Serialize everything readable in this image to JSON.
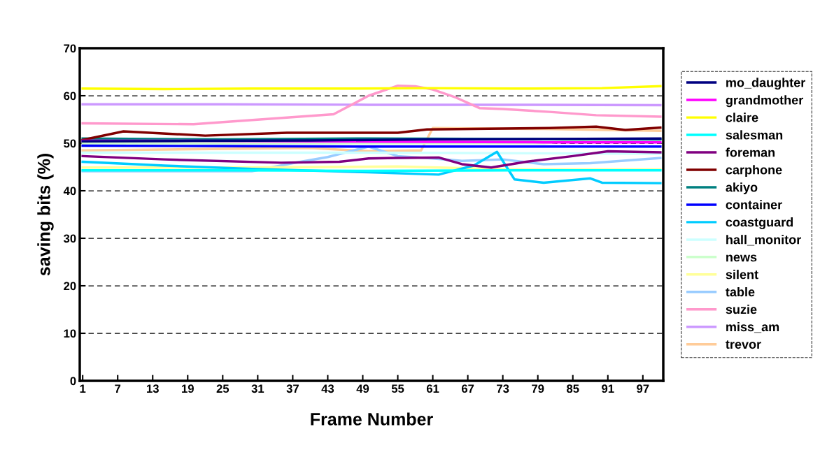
{
  "chart_data": {
    "type": "line",
    "xlabel": "Frame Number",
    "ylabel": "saving bits (%)",
    "xlim": [
      0.5,
      100.5
    ],
    "xticks": [
      1,
      7,
      13,
      19,
      25,
      31,
      37,
      43,
      49,
      55,
      61,
      67,
      73,
      79,
      85,
      91,
      97
    ],
    "ylim": [
      0,
      70
    ],
    "yticks": [
      0,
      10,
      20,
      30,
      40,
      50,
      60,
      70
    ],
    "grid": "y",
    "legend": "right",
    "marker": "none",
    "line_style": "solid",
    "series": [
      {
        "name": "mo_daughter",
        "color": "#000080",
        "x": [
          1,
          20,
          40,
          60,
          80,
          100
        ],
        "values": [
          50.4,
          50.5,
          50.6,
          50.8,
          50.9,
          51.0
        ]
      },
      {
        "name": "grandmother",
        "color": "#ff00ff",
        "x": [
          1,
          20,
          40,
          60,
          80,
          100
        ],
        "values": [
          50.5,
          50.5,
          50.4,
          50.3,
          50.2,
          50.2
        ]
      },
      {
        "name": "claire",
        "color": "#ffff00",
        "x": [
          1,
          15,
          30,
          45,
          60,
          75,
          90,
          100
        ],
        "values": [
          61.5,
          61.4,
          61.5,
          61.5,
          61.6,
          61.5,
          61.6,
          62.0
        ]
      },
      {
        "name": "salesman",
        "color": "#00ffff",
        "x": [
          1,
          25,
          50,
          75,
          100
        ],
        "values": [
          44.3,
          44.3,
          44.2,
          44.3,
          44.3
        ]
      },
      {
        "name": "foreman",
        "color": "#800080",
        "x": [
          1,
          15,
          35,
          45,
          50,
          55,
          62,
          66,
          71,
          77,
          85,
          91,
          100
        ],
        "values": [
          47.3,
          46.6,
          45.9,
          46.1,
          46.8,
          46.9,
          47.0,
          45.6,
          44.9,
          46.1,
          47.3,
          48.3,
          48.1
        ]
      },
      {
        "name": "carphone",
        "color": "#800000",
        "x": [
          1,
          8,
          22,
          36,
          50,
          55,
          60,
          81,
          89,
          94,
          100
        ],
        "values": [
          50.7,
          52.5,
          51.6,
          52.2,
          52.2,
          52.2,
          52.9,
          53.2,
          53.5,
          52.8,
          53.3
        ]
      },
      {
        "name": "akiyo",
        "color": "#008080",
        "x": [
          1,
          25,
          50,
          75,
          100
        ],
        "values": [
          51.0,
          50.8,
          51.0,
          50.9,
          50.8
        ]
      },
      {
        "name": "container",
        "color": "#0000ff",
        "x": [
          1,
          25,
          50,
          75,
          100
        ],
        "values": [
          49.5,
          49.4,
          49.3,
          49.3,
          49.3
        ]
      },
      {
        "name": "coastguard",
        "color": "#00ccff",
        "x": [
          1,
          10,
          15,
          30,
          50,
          62,
          68,
          72,
          75,
          80,
          88,
          90,
          100
        ],
        "values": [
          46.1,
          45.6,
          45.3,
          44.6,
          43.9,
          43.4,
          45.3,
          48.2,
          42.4,
          41.7,
          42.6,
          41.7,
          41.6
        ]
      },
      {
        "name": "hall_monitor",
        "color": "#ccffff",
        "x": [
          1,
          50,
          100
        ],
        "values": [
          48.0,
          48.0,
          47.8
        ]
      },
      {
        "name": "news",
        "color": "#ccffcc",
        "x": [
          1,
          40,
          80,
          88,
          100
        ],
        "values": [
          50.0,
          50.0,
          50.0,
          50.8,
          50.9
        ]
      },
      {
        "name": "silent",
        "color": "#ffff99",
        "x": [
          1,
          30,
          55,
          75,
          100
        ],
        "values": [
          44.9,
          44.9,
          45.1,
          44.5,
          44.5
        ]
      },
      {
        "name": "table",
        "color": "#99ccff",
        "x": [
          1,
          30,
          37,
          43,
          50,
          55,
          61,
          66,
          73,
          80,
          88,
          100
        ],
        "values": [
          44.1,
          44.1,
          45.8,
          47.1,
          49.3,
          47.3,
          46.8,
          46.3,
          46.6,
          45.6,
          45.8,
          46.9
        ]
      },
      {
        "name": "suzie",
        "color": "#ff99cc",
        "x": [
          1,
          20,
          36,
          44,
          50,
          55,
          58,
          61,
          65,
          69,
          73,
          81,
          89,
          100
        ],
        "values": [
          54.2,
          54.0,
          55.4,
          56.1,
          60.0,
          62.1,
          62.0,
          61.3,
          59.6,
          57.4,
          57.2,
          56.6,
          55.9,
          55.6
        ]
      },
      {
        "name": "miss_am",
        "color": "#cc99ff",
        "x": [
          1,
          25,
          50,
          75,
          100
        ],
        "values": [
          58.2,
          58.2,
          58.1,
          58.1,
          58.0
        ]
      },
      {
        "name": "trevor",
        "color": "#ffcc99",
        "x": [
          1,
          40,
          50,
          59,
          61,
          80,
          100
        ],
        "values": [
          48.5,
          49.0,
          48.3,
          48.5,
          53.2,
          53.0,
          52.6
        ]
      }
    ]
  }
}
